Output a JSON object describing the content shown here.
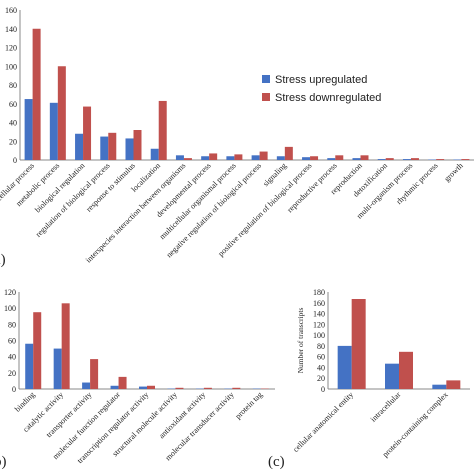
{
  "chart_data": [
    {
      "type": "bar",
      "panel_label": "a)",
      "categories": [
        "cellular process",
        "metabolic process",
        "biological regulation",
        "regulation of biological process",
        "response to stimulus",
        "localization",
        "interspecies interaction between organisms",
        "developmental process",
        "multicellular organismal process",
        "negative regulation of biological process",
        "signaling",
        "positive regulation of biological process",
        "reproductive process",
        "reproduction",
        "detoxification",
        "multi-organism process",
        "rhythmic process",
        "growth"
      ],
      "series": [
        {
          "name": "Stress upregulated",
          "color": "#4472c4",
          "values": [
            65,
            61,
            28,
            25,
            23,
            12,
            5,
            4,
            4,
            5,
            4,
            3,
            2,
            2,
            1,
            1,
            0.5,
            0.5
          ]
        },
        {
          "name": "Stress downregulated",
          "color": "#c0504d",
          "values": [
            140,
            100,
            57,
            29,
            32,
            63,
            2,
            7,
            6,
            9,
            14,
            4,
            5,
            5,
            2,
            2,
            1,
            1
          ]
        }
      ],
      "yticks": [
        "0",
        "20",
        "40",
        "60",
        "80",
        "100",
        "120",
        "140",
        "160"
      ],
      "ylim": [
        0,
        160
      ],
      "legend_position": "right"
    },
    {
      "type": "bar",
      "panel_label": "b)",
      "categories": [
        "binding",
        "catalytic activity",
        "transporter activity",
        "molecular function regulator",
        "transcription regulator activity",
        "structural molecule activity",
        "antioxidant activity",
        "molecular transducer activity",
        "protein tag"
      ],
      "series": [
        {
          "name": "Stress upregulated",
          "color": "#4472c4",
          "values": [
            56,
            50,
            8,
            4,
            3,
            0.5,
            0.5,
            0.5,
            0.5
          ]
        },
        {
          "name": "Stress downregulated",
          "color": "#c0504d",
          "values": [
            95,
            106,
            37,
            15,
            4,
            1.5,
            1.5,
            1.5,
            0.5
          ]
        }
      ],
      "yticks": [
        "0",
        "20",
        "40",
        "60",
        "80",
        "100",
        "120"
      ],
      "ylim": [
        0,
        120
      ]
    },
    {
      "type": "bar",
      "panel_label": "(c)",
      "ylabel": "Number of transcripts",
      "categories": [
        "cellular anatomical entity",
        "intracellular",
        "protein-containing complex"
      ],
      "series": [
        {
          "name": "Stress upregulated",
          "color": "#4472c4",
          "values": [
            80,
            47,
            8
          ]
        },
        {
          "name": "Stress downregulated",
          "color": "#c0504d",
          "values": [
            167,
            69,
            16
          ]
        }
      ],
      "yticks": [
        "0",
        "20",
        "40",
        "60",
        "80",
        "100",
        "120",
        "140",
        "160",
        "180"
      ],
      "ylim": [
        0,
        180
      ]
    }
  ]
}
